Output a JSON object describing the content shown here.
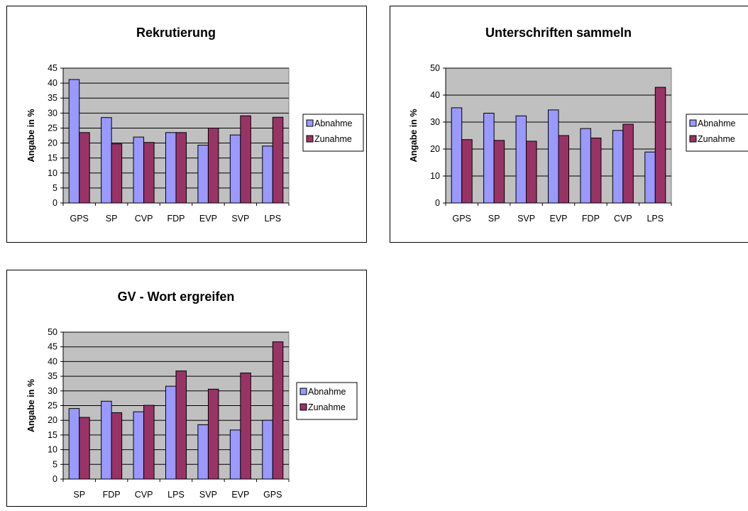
{
  "colors": {
    "plot_bg": "#c0c0c0",
    "abnahme": "#9999ff",
    "zunahme": "#993366",
    "grid": "#000000"
  },
  "chart_data": [
    {
      "type": "bar",
      "title": "Rekrutierung",
      "xlabel": "",
      "ylabel": "Angabe in %",
      "categories": [
        "GPS",
        "SP",
        "CVP",
        "FDP",
        "EVP",
        "SVP",
        "LPS"
      ],
      "series": [
        {
          "name": "Abnahme",
          "values": [
            41.2,
            28.5,
            22.0,
            23.5,
            19.3,
            22.7,
            19.0
          ]
        },
        {
          "name": "Zunahme",
          "values": [
            23.5,
            19.7,
            20.2,
            23.5,
            25.0,
            29.1,
            28.6
          ]
        }
      ],
      "ylim": [
        0,
        45
      ],
      "yticks": [
        0,
        5,
        10,
        15,
        20,
        25,
        30,
        35,
        40,
        45
      ],
      "grid": true,
      "legend": "right"
    },
    {
      "type": "bar",
      "title": "Unterschriften sammeln",
      "xlabel": "",
      "ylabel": "Angabe in %",
      "categories": [
        "GPS",
        "SP",
        "SVP",
        "EVP",
        "FDP",
        "CVP",
        "LPS"
      ],
      "series": [
        {
          "name": "Abnahme",
          "values": [
            35.3,
            33.3,
            32.3,
            34.5,
            27.6,
            26.9,
            18.9
          ]
        },
        {
          "name": "Zunahme",
          "values": [
            23.5,
            23.2,
            22.9,
            25.0,
            24.1,
            29.2,
            42.9
          ]
        }
      ],
      "ylim": [
        0,
        50
      ],
      "yticks": [
        0,
        10,
        20,
        30,
        40,
        50
      ],
      "grid": true,
      "legend": "right"
    },
    {
      "type": "bar",
      "title": "GV - Wort ergreifen",
      "xlabel": "",
      "ylabel": "Angabe in %",
      "categories": [
        "SP",
        "FDP",
        "CVP",
        "LPS",
        "SVP",
        "EVP",
        "GPS"
      ],
      "series": [
        {
          "name": "Abnahme",
          "values": [
            24.0,
            26.5,
            22.9,
            31.6,
            18.5,
            16.7,
            20.0
          ]
        },
        {
          "name": "Zunahme",
          "values": [
            21.0,
            22.6,
            25.1,
            36.8,
            30.6,
            36.1,
            46.7
          ]
        }
      ],
      "ylim": [
        0,
        50
      ],
      "yticks": [
        0,
        5,
        10,
        15,
        20,
        25,
        30,
        35,
        40,
        45,
        50
      ],
      "grid": true,
      "legend": "right"
    }
  ]
}
